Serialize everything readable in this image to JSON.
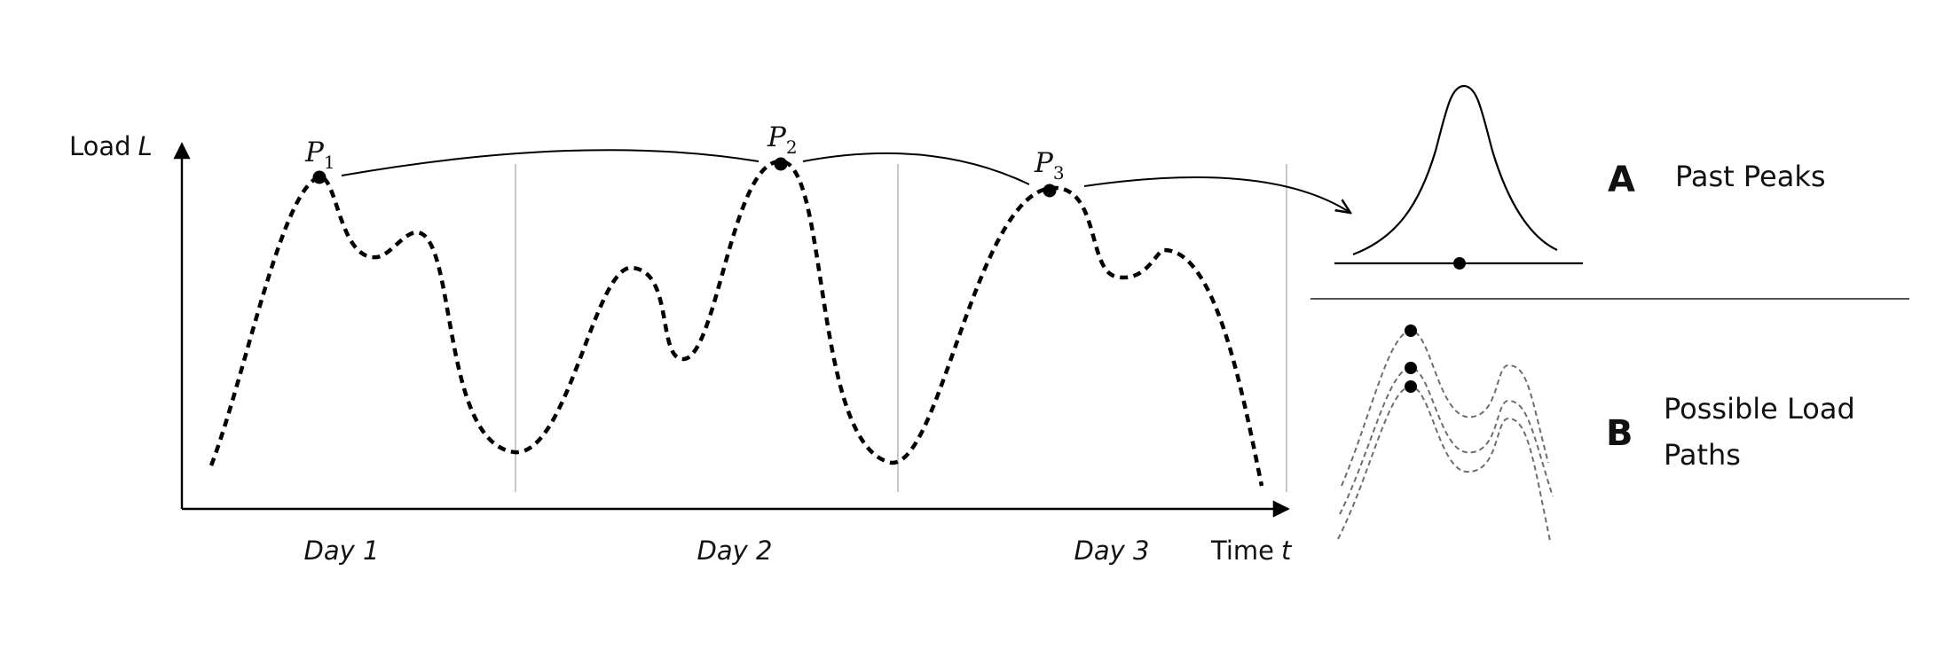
{
  "main_chart": {
    "y_axis_label": "Load",
    "y_axis_symbol": "L",
    "x_axis_label": "Time",
    "x_axis_symbol": "t",
    "days": [
      "Day 1",
      "Day 2",
      "Day 3"
    ],
    "peaks": [
      {
        "letter": "P",
        "index": "1"
      },
      {
        "letter": "P",
        "index": "2"
      },
      {
        "letter": "P",
        "index": "3"
      }
    ]
  },
  "panel_a": {
    "letter": "A",
    "title": "Past Peaks"
  },
  "panel_b": {
    "letter": "B",
    "title_line1": "Possible Load",
    "title_line2": "Paths"
  },
  "colors": {
    "ink": "#000000",
    "divider": "#c8c8c8",
    "dashed_gray": "#6e6e6e"
  }
}
